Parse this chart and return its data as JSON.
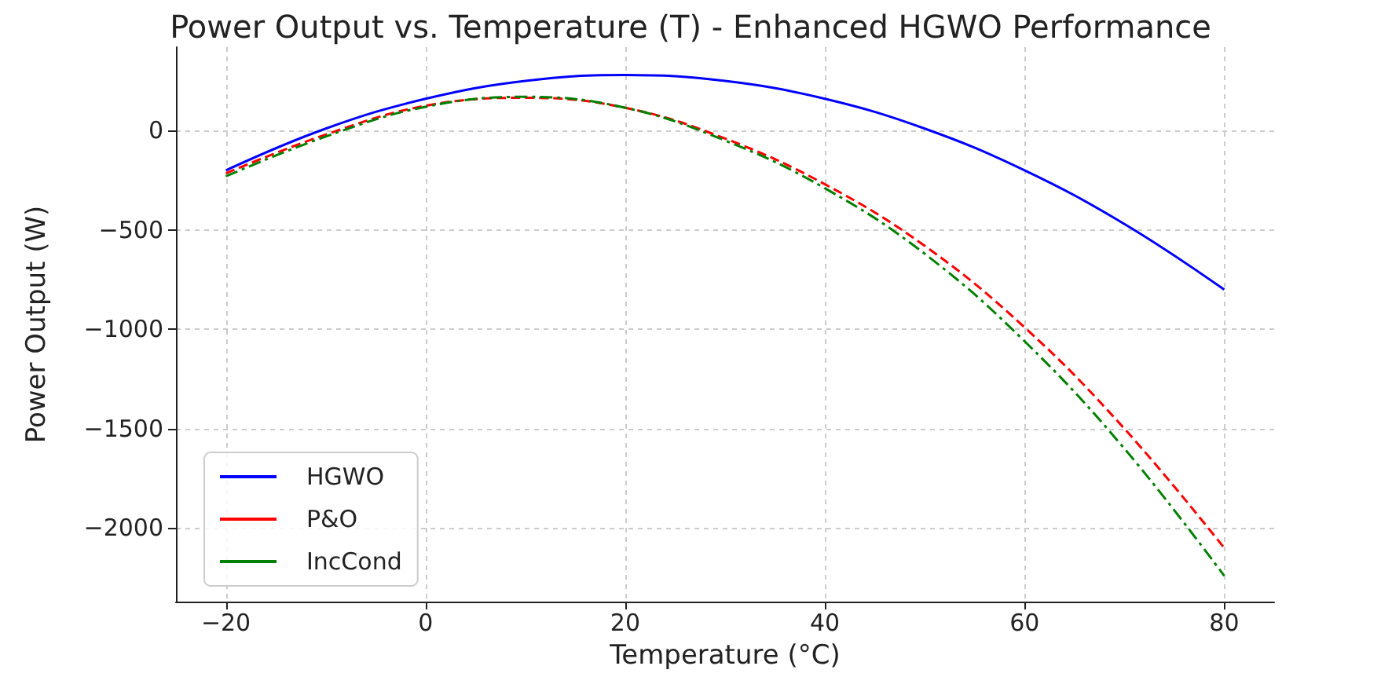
{
  "chart_data": {
    "type": "line",
    "title": "Power Output vs. Temperature (T) - Enhanced HGWO Performance",
    "xlabel": "Temperature (°C)",
    "ylabel": "Power Output (W)",
    "x": [
      -20,
      -10,
      0,
      10,
      20,
      30,
      40,
      50,
      60,
      70,
      80
    ],
    "series": [
      {
        "name": "HGWO",
        "color": "#0000ff",
        "line_style": "solid",
        "values": [
          -200,
          10,
          160,
          250,
          280,
          250,
          160,
          10,
          -200,
          -470,
          -800
        ]
      },
      {
        "name": "P&O",
        "color": "#ff0000",
        "line_style": "dashed",
        "values": [
          -215,
          -20,
          125,
          165,
          115,
          -40,
          -270,
          -580,
          -990,
          -1500,
          -2100
        ]
      },
      {
        "name": "IncCond",
        "color": "#008000",
        "line_style": "dashdot",
        "values": [
          -230,
          -30,
          120,
          170,
          115,
          -50,
          -290,
          -620,
          -1060,
          -1600,
          -2240
        ]
      }
    ],
    "xlim": [
      -25,
      85
    ],
    "xticks": [
      -20,
      0,
      20,
      40,
      60,
      80
    ],
    "ylim": [
      -2370,
      420
    ],
    "yticks": [
      -2000,
      -1500,
      -1000,
      -500,
      0
    ],
    "grid": true,
    "legend": "bottom left",
    "marker": "none"
  }
}
